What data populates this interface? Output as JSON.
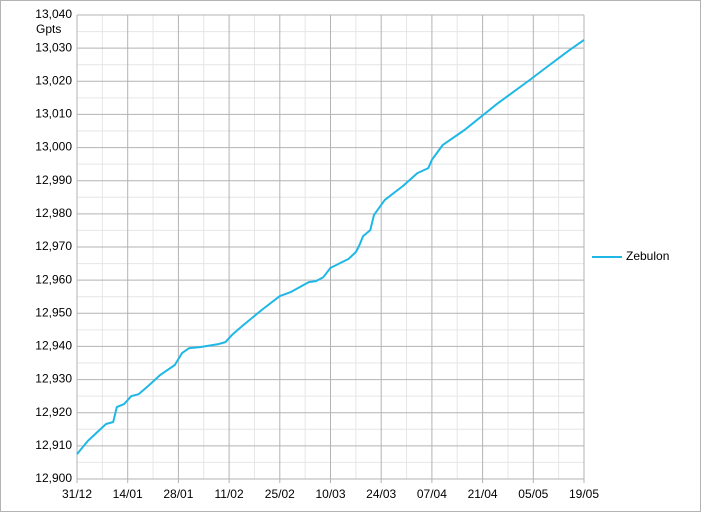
{
  "chart_data": {
    "type": "line",
    "y_label": "Gpts",
    "x": [
      "31/12",
      "03/01",
      "08/01",
      "10/01",
      "11/01",
      "13/01",
      "15/01",
      "17/01",
      "20/01",
      "23/01",
      "27/01",
      "29/01",
      "31/01",
      "03/02",
      "08/02",
      "10/02",
      "12/02",
      "15/02",
      "20/02",
      "25/02",
      "28/02",
      "01/03",
      "04/03",
      "06/03",
      "08/03",
      "10/03",
      "15/03",
      "17/03",
      "18/03",
      "19/03",
      "21/03",
      "22/03",
      "25/03",
      "30/03",
      "03/04",
      "06/04",
      "07/04",
      "08/04",
      "10/04",
      "16/04",
      "25/04",
      "04/05",
      "08/05",
      "15/05",
      "19/05"
    ],
    "series": [
      {
        "name": "Zebulon",
        "color": "#1fb8e6",
        "values": [
          12907.5,
          12911.5,
          12916.6,
          12917.2,
          12921.7,
          12922.6,
          12925,
          12925.6,
          12928.4,
          12931.4,
          12934.4,
          12938,
          12939.5,
          12939.8,
          12940.7,
          12941.3,
          12943.7,
          12946.5,
          12951,
          12955.2,
          12956.4,
          12957.6,
          12959.4,
          12959.7,
          12960.9,
          12963.7,
          12966.4,
          12968.5,
          12970.6,
          12973.3,
          12975.1,
          12979.7,
          12984.2,
          12988.4,
          12992.3,
          12993.8,
          12996.3,
          12997.8,
          13000.8,
          13005.3,
          13013.2,
          13020.4,
          13023.7,
          13029.4,
          13032.5
        ]
      }
    ],
    "xlim": [
      "31/12",
      "19/05"
    ],
    "xticks": [
      "31/12",
      "14/01",
      "28/01",
      "11/02",
      "25/02",
      "10/03",
      "24/03",
      "07/04",
      "21/04",
      "05/05",
      "19/05"
    ],
    "ylim": [
      12900,
      13040
    ],
    "yticks": [
      {
        "value": 12900,
        "label": "12,900"
      },
      {
        "value": 12910,
        "label": "12,910"
      },
      {
        "value": 12920,
        "label": "12,920"
      },
      {
        "value": 12930,
        "label": "12,930"
      },
      {
        "value": 12940,
        "label": "12,940"
      },
      {
        "value": 12950,
        "label": "12,950"
      },
      {
        "value": 12960,
        "label": "12,960"
      },
      {
        "value": 12970,
        "label": "12,970"
      },
      {
        "value": 12980,
        "label": "12,980"
      },
      {
        "value": 12990,
        "label": "12,990"
      },
      {
        "value": 13000,
        "label": "13,000"
      },
      {
        "value": 13010,
        "label": "13,010"
      },
      {
        "value": 13020,
        "label": "13,020"
      },
      {
        "value": 13030,
        "label": "13,030"
      },
      {
        "value": 13040,
        "label": "13,040"
      }
    ],
    "grid": true,
    "minor_grid": true,
    "legend": "right"
  }
}
